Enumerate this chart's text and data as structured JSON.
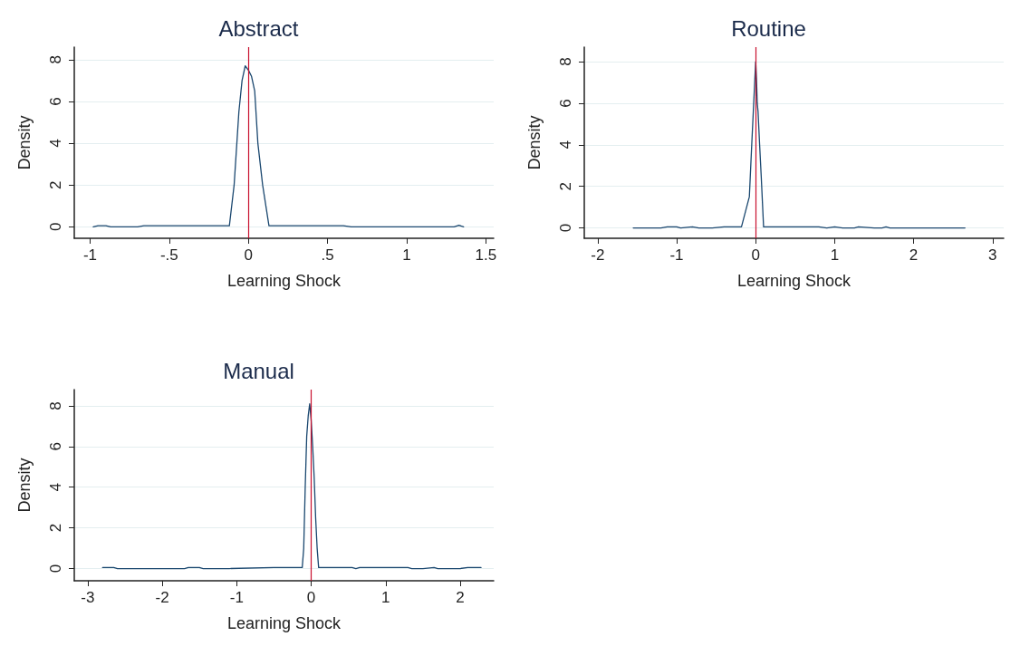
{
  "chart_data": [
    {
      "type": "line",
      "title": "Abstract",
      "xlabel": "Learning Shock",
      "ylabel": "Density",
      "xlim": [
        -1.1,
        1.55
      ],
      "xticks": [
        -1,
        {
          "value": -0.5,
          "label": "-.5"
        },
        0,
        {
          "value": 0.5,
          "label": ".5"
        },
        1,
        1.5
      ],
      "ylim": [
        -0.55,
        8.6
      ],
      "yticks": [
        0,
        2,
        4,
        6,
        8
      ],
      "grid": "y",
      "marker": "none",
      "line_style": "solid",
      "series": [
        {
          "color": "#1a476f",
          "x": [
            -0.98,
            -0.95,
            -0.9,
            -0.87,
            -0.8,
            -0.7,
            -0.66,
            -0.5,
            -0.3,
            -0.12,
            -0.09,
            -0.06,
            -0.04,
            -0.02,
            0.0,
            0.02,
            0.04,
            0.06,
            0.09,
            0.13,
            0.3,
            0.6,
            0.65,
            0.9,
            1.2,
            1.3,
            1.33,
            1.36
          ],
          "values": [
            0,
            0.05,
            0.05,
            0,
            0,
            0,
            0.05,
            0.05,
            0.05,
            0.05,
            2,
            5.5,
            7,
            7.7,
            7.5,
            7.2,
            6.5,
            4,
            2,
            0.05,
            0.05,
            0.05,
            0,
            0,
            0,
            0,
            0.07,
            0
          ]
        }
      ],
      "ref_lines": [
        {
          "axis": "x",
          "value": 0,
          "color": "#c8102e"
        }
      ]
    },
    {
      "type": "line",
      "title": "Routine",
      "xlabel": "Learning Shock",
      "ylabel": "Density",
      "xlim": [
        -2.17,
        3.14
      ],
      "xticks": [
        -2,
        -1,
        0,
        1,
        2,
        3
      ],
      "ylim": [
        -0.5,
        8.7
      ],
      "yticks": [
        0,
        2,
        4,
        6,
        8
      ],
      "grid": "y",
      "marker": "none",
      "line_style": "solid",
      "series": [
        {
          "color": "#1a476f",
          "x": [
            -1.55,
            -1.2,
            -1.12,
            -1.0,
            -0.95,
            -0.8,
            -0.72,
            -0.55,
            -0.4,
            -0.18,
            -0.08,
            -0.05,
            -0.03,
            -0.01,
            0.0,
            0.01,
            0.02,
            0.03,
            0.05,
            0.07,
            0.1,
            0.4,
            0.8,
            0.9,
            1.0,
            1.1,
            1.25,
            1.3,
            1.5,
            1.6,
            1.65,
            1.7,
            2.0,
            2.65
          ],
          "values": [
            0,
            0,
            0.05,
            0.05,
            0,
            0.05,
            0,
            0,
            0.05,
            0.05,
            1.5,
            4,
            5.6,
            7.2,
            8,
            7.2,
            6,
            5.6,
            4,
            2.5,
            0.05,
            0.05,
            0.05,
            0,
            0.05,
            0,
            0,
            0.05,
            0,
            0,
            0.05,
            0,
            0,
            0
          ]
        }
      ],
      "ref_lines": [
        {
          "axis": "x",
          "value": 0,
          "color": "#c8102e"
        }
      ]
    },
    {
      "type": "line",
      "title": "Manual",
      "xlabel": "Learning Shock",
      "ylabel": "Density",
      "xlim": [
        -3.18,
        2.45
      ],
      "xticks": [
        -3,
        -2,
        -1,
        0,
        1,
        2
      ],
      "ylim": [
        -0.6,
        8.8
      ],
      "yticks": [
        0,
        2,
        4,
        6,
        8
      ],
      "grid": "y",
      "marker": "none",
      "line_style": "solid",
      "series": [
        {
          "color": "#1a476f",
          "x": [
            -2.8,
            -2.65,
            -2.6,
            -2.0,
            -1.7,
            -1.65,
            -1.5,
            -1.45,
            -1.1,
            -0.5,
            -0.12,
            -0.1,
            -0.08,
            -0.06,
            -0.04,
            -0.02,
            0.0,
            0.02,
            0.04,
            0.06,
            0.08,
            0.1,
            0.3,
            0.55,
            0.6,
            0.65,
            1.0,
            1.3,
            1.35,
            1.5,
            1.65,
            1.7,
            2.0,
            2.1,
            2.28
          ],
          "values": [
            0.05,
            0.05,
            0,
            0,
            0,
            0.05,
            0.05,
            0,
            0,
            0.05,
            0.05,
            1,
            4,
            6.5,
            7.5,
            8.1,
            7.3,
            6,
            4.5,
            2.5,
            1,
            0.05,
            0.05,
            0.05,
            0,
            0.05,
            0.05,
            0.05,
            0,
            0,
            0.05,
            0,
            0,
            0.05,
            0.05
          ]
        }
      ],
      "ref_lines": [
        {
          "axis": "x",
          "value": 0,
          "color": "#c8102e"
        }
      ]
    }
  ]
}
